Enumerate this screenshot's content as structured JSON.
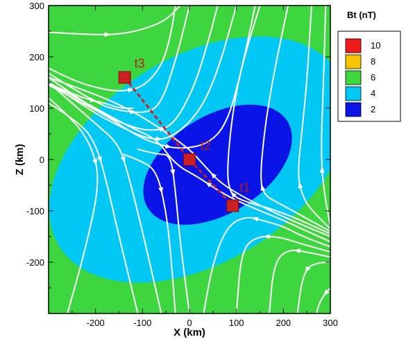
{
  "chart_data": {
    "type": "contour",
    "xlabel": "X (km)",
    "ylabel": "Z (km)",
    "xlim": [
      -300,
      300
    ],
    "ylim": [
      -300,
      300
    ],
    "x_ticks": [
      -200,
      -100,
      0,
      100,
      200,
      300
    ],
    "x_tick_labels": [
      "-200",
      "-100",
      "0",
      "100",
      "200",
      "300"
    ],
    "y_ticks": [
      -200,
      -100,
      0,
      100,
      200,
      300
    ],
    "y_tick_labels": [
      "-200",
      "-100",
      "0",
      "100",
      "200",
      "300"
    ],
    "grid": false,
    "legend": {
      "title": "Bt (nT)",
      "placement": "right",
      "levels": [
        {
          "label": "10",
          "color": "#ee1c1c"
        },
        {
          "label": "8",
          "color": "#f5c400"
        },
        {
          "label": "6",
          "color": "#3ed63e"
        },
        {
          "label": "4",
          "color": "#00c8f5"
        },
        {
          "label": "2",
          "color": "#0a14e6"
        }
      ]
    },
    "contour_regions": [
      {
        "level": 2,
        "color": "#0a14e6",
        "center": [
          60,
          -10
        ],
        "semi_axes": [
          175,
          95
        ],
        "rotation_deg": -32
      },
      {
        "level": 4,
        "color": "#00c8f5",
        "center": [
          20,
          0
        ],
        "semi_axes": [
          350,
          200
        ],
        "rotation_deg": -32
      },
      {
        "level": 6,
        "color": "#3ed63e",
        "center": [
          0,
          0
        ],
        "semi_axes": [
          900,
          600
        ],
        "rotation_deg": 0
      }
    ],
    "trajectory": {
      "color": "#cc1f1f",
      "points": [
        {
          "label": "t3",
          "x": -138,
          "z": 160
        },
        {
          "label": "t2",
          "x": 0,
          "z": 0
        },
        {
          "label": "t1",
          "x": 92,
          "z": -90
        }
      ]
    },
    "streamlines": {
      "color": "#ffffff",
      "lines": [
        [
          [
            -300,
            248
          ],
          [
            -260,
            246
          ],
          [
            -200,
            243
          ],
          [
            -150,
            244
          ],
          [
            -100,
            253
          ],
          [
            -50,
            271
          ],
          [
            -20,
            300
          ]
        ],
        [
          [
            -300,
            178
          ],
          [
            -250,
            155
          ],
          [
            -200,
            140
          ],
          [
            -150,
            132
          ],
          [
            -100,
            140
          ],
          [
            -60,
            180
          ],
          [
            -40,
            240
          ],
          [
            -30,
            300
          ]
        ],
        [
          [
            -300,
            168
          ],
          [
            -200,
            110
          ],
          [
            -150,
            95
          ],
          [
            -90,
            90
          ],
          [
            -60,
            110
          ],
          [
            -30,
            190
          ],
          [
            0,
            300
          ]
        ],
        [
          [
            -300,
            160
          ],
          [
            -200,
            95
          ],
          [
            -130,
            65
          ],
          [
            -80,
            55
          ],
          [
            -35,
            65
          ],
          [
            10,
            140
          ],
          [
            40,
            230
          ],
          [
            60,
            300
          ]
        ],
        [
          [
            -300,
            150
          ],
          [
            -210,
            95
          ],
          [
            -150,
            65
          ],
          [
            -90,
            40
          ],
          [
            -40,
            40
          ],
          [
            20,
            90
          ],
          [
            60,
            170
          ],
          [
            100,
            300
          ]
        ],
        [
          [
            -300,
            145
          ],
          [
            -180,
            88
          ],
          [
            -120,
            50
          ],
          [
            -70,
            30
          ],
          [
            -20,
            20
          ],
          [
            40,
            30
          ],
          [
            80,
            70
          ],
          [
            110,
            170
          ],
          [
            140,
            300
          ]
        ],
        [
          [
            -300,
            148
          ],
          [
            -230,
            120
          ],
          [
            -180,
            110
          ],
          [
            -150,
            100
          ],
          [
            -120,
            100
          ]
        ],
        [
          [
            -300,
            120
          ],
          [
            -250,
            80
          ],
          [
            -210,
            30
          ],
          [
            -190,
            -40
          ],
          [
            -220,
            -170
          ],
          [
            -260,
            -300
          ]
        ],
        [
          [
            -300,
            110
          ],
          [
            -230,
            70
          ],
          [
            -200,
            30
          ],
          [
            -180,
            -30
          ],
          [
            -150,
            -150
          ],
          [
            -110,
            -300
          ]
        ],
        [
          [
            -300,
            150
          ],
          [
            -200,
            70
          ],
          [
            -150,
            30
          ],
          [
            -130,
            -30
          ],
          [
            -100,
            -140
          ],
          [
            -60,
            -300
          ]
        ],
        [
          [
            -140,
            10
          ],
          [
            -110,
            0
          ],
          [
            -70,
            -20
          ],
          [
            -50,
            -100
          ],
          [
            -40,
            -180
          ],
          [
            -30,
            -300
          ]
        ],
        [
          [
            -110,
            20
          ],
          [
            -70,
            10
          ],
          [
            -40,
            10
          ],
          [
            -30,
            -60
          ],
          [
            -20,
            -160
          ],
          [
            0,
            -300
          ]
        ],
        [
          [
            300,
            -160
          ],
          [
            250,
            -140
          ],
          [
            200,
            -118
          ],
          [
            150,
            -100
          ],
          [
            100,
            -80
          ],
          [
            60,
            -60
          ],
          [
            20,
            -35
          ],
          [
            -30,
            -10
          ],
          [
            -70,
            40
          ],
          [
            -120,
            60
          ],
          [
            -200,
            100
          ],
          [
            -300,
            150
          ]
        ],
        [
          [
            300,
            -150
          ],
          [
            220,
            -120
          ],
          [
            150,
            -90
          ],
          [
            90,
            -60
          ],
          [
            60,
            -40
          ],
          [
            40,
            -20
          ],
          [
            20,
            0
          ],
          [
            0,
            20
          ],
          [
            -60,
            60
          ],
          [
            -150,
            110
          ],
          [
            -300,
            160
          ]
        ],
        [
          [
            300,
            -170
          ],
          [
            240,
            -150
          ],
          [
            200,
            -130
          ],
          [
            160,
            -120
          ],
          [
            120,
            -110
          ],
          [
            80,
            -130
          ],
          [
            50,
            -200
          ],
          [
            30,
            -300
          ]
        ],
        [
          [
            300,
            -180
          ],
          [
            240,
            -165
          ],
          [
            190,
            -150
          ],
          [
            140,
            -150
          ],
          [
            110,
            -180
          ],
          [
            100,
            -300
          ]
        ],
        [
          [
            300,
            -190
          ],
          [
            250,
            -180
          ],
          [
            210,
            -175
          ],
          [
            180,
            -200
          ],
          [
            170,
            -300
          ]
        ],
        [
          [
            300,
            -200
          ],
          [
            260,
            -200
          ],
          [
            240,
            -230
          ],
          [
            230,
            -300
          ]
        ],
        [
          [
            300,
            -145
          ],
          [
            230,
            -115
          ],
          [
            170,
            -95
          ],
          [
            130,
            -85
          ],
          [
            100,
            -75
          ],
          [
            85,
            -60
          ],
          [
            80,
            -20
          ],
          [
            90,
            80
          ],
          [
            110,
            180
          ],
          [
            150,
            300
          ]
        ],
        [
          [
            300,
            -140
          ],
          [
            240,
            -110
          ],
          [
            190,
            -85
          ],
          [
            160,
            -70
          ],
          [
            150,
            -40
          ],
          [
            160,
            60
          ],
          [
            180,
            170
          ],
          [
            210,
            300
          ]
        ],
        [
          [
            300,
            -135
          ],
          [
            260,
            -100
          ],
          [
            240,
            -70
          ],
          [
            230,
            -30
          ],
          [
            240,
            60
          ],
          [
            250,
            150
          ],
          [
            260,
            300
          ]
        ],
        [
          [
            300,
            -130
          ],
          [
            285,
            -60
          ],
          [
            280,
            20
          ],
          [
            285,
            140
          ],
          [
            290,
            300
          ]
        ],
        [
          [
            300,
            -250
          ],
          [
            280,
            -270
          ],
          [
            270,
            -300
          ]
        ]
      ]
    }
  }
}
